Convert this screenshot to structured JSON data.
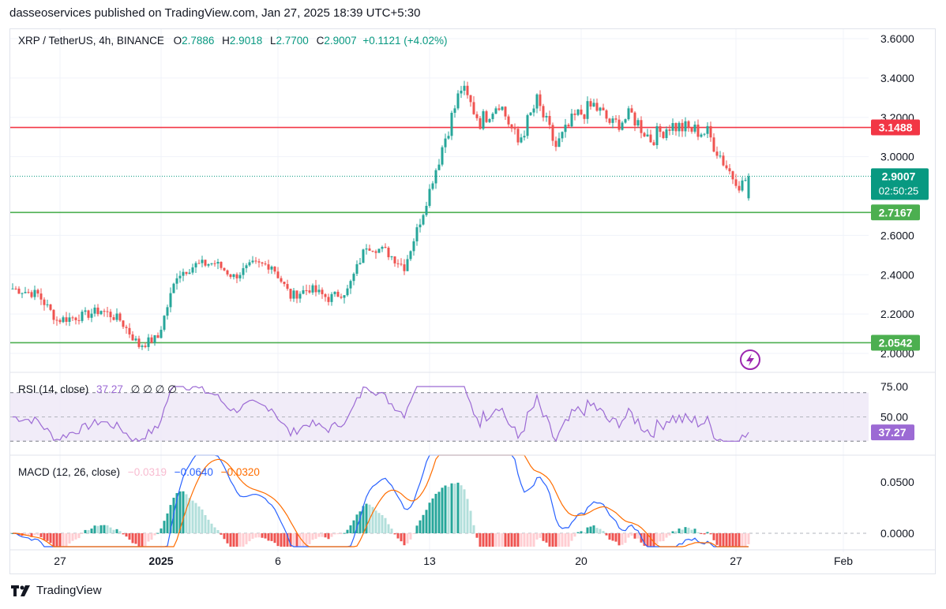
{
  "header": {
    "published_text": "dasseoservices published on TradingView.com, Jan 27, 2025 18:39 UTC+5:30"
  },
  "legend": {
    "symbol": "XRP / TetherUS, 4h, BINANCE",
    "o_label": "O",
    "o_value": "2.7886",
    "h_label": "H",
    "h_value": "2.9018",
    "l_label": "L",
    "l_value": "2.7700",
    "c_label": "C",
    "c_value": "2.9007",
    "change": "+0.1121 (+4.02%)"
  },
  "rsi_legend": {
    "label": "RSI (14, close)",
    "value": "37.27",
    "extra": "∅ ∅ ∅ ∅"
  },
  "macd_legend": {
    "label": "MACD (12, 26, close)",
    "hist": "−0.0319",
    "macd": "−0.0640",
    "signal": "−0.0320"
  },
  "footer": {
    "brand": "TradingView"
  },
  "colors": {
    "up": "#26a69a",
    "down": "#ef5350",
    "resistance": "#f23645",
    "support": "#4caf50",
    "rsi": "#9c6ad4",
    "macd": "#2962ff",
    "signal": "#ff6d00",
    "current": "#089981"
  },
  "icons": [
    "lightning-icon",
    "tradingview-logo-icon"
  ],
  "chart_data": {
    "type": "candlestick",
    "price_axis": {
      "min": 2.0,
      "max": 3.6,
      "ticks": [
        "3.6000",
        "3.4000",
        "3.2000",
        "3.0000",
        "2.6000",
        "2.4000",
        "2.2000",
        "2.0000"
      ]
    },
    "x_ticks": [
      "27",
      "2025",
      "6",
      "13",
      "20",
      "27",
      "Feb"
    ],
    "levels": [
      {
        "label": "3.1488",
        "value": 3.1488,
        "color": "#f23645"
      },
      {
        "label": "2.7167",
        "value": 2.7167,
        "color": "#4caf50"
      },
      {
        "label": "2.0542",
        "value": 2.0542,
        "color": "#4caf50"
      }
    ],
    "current_price": {
      "label": "2.9007",
      "value": 2.9007,
      "countdown": "02:50:25"
    },
    "trend": [
      [
        0,
        2.33
      ],
      [
        8,
        2.3
      ],
      [
        14,
        2.17
      ],
      [
        22,
        2.19
      ],
      [
        28,
        2.22
      ],
      [
        34,
        2.17
      ],
      [
        40,
        2.04
      ],
      [
        46,
        2.08
      ],
      [
        52,
        2.4
      ],
      [
        58,
        2.45
      ],
      [
        64,
        2.46
      ],
      [
        70,
        2.39
      ],
      [
        76,
        2.45
      ],
      [
        82,
        2.45
      ],
      [
        88,
        2.29
      ],
      [
        94,
        2.33
      ],
      [
        100,
        2.28
      ],
      [
        106,
        2.32
      ],
      [
        112,
        2.55
      ],
      [
        118,
        2.52
      ],
      [
        124,
        2.44
      ],
      [
        130,
        2.72
      ],
      [
        136,
        3.05
      ],
      [
        142,
        3.35
      ],
      [
        148,
        3.18
      ],
      [
        154,
        3.28
      ],
      [
        160,
        3.07
      ],
      [
        166,
        3.28
      ],
      [
        172,
        3.05
      ],
      [
        178,
        3.2
      ],
      [
        184,
        3.26
      ],
      [
        190,
        3.16
      ],
      [
        196,
        3.21
      ],
      [
        202,
        3.09
      ],
      [
        208,
        3.16
      ],
      [
        214,
        3.14
      ],
      [
        220,
        3.12
      ],
      [
        226,
        2.95
      ],
      [
        230,
        2.85
      ],
      [
        233,
        2.9007
      ]
    ],
    "rsi": {
      "ticks": [
        "75.00",
        "50.00"
      ],
      "current": 37.27,
      "last": 37.27
    },
    "macd": {
      "ticks": [
        "0.0500",
        "0.0000"
      ],
      "hist": -0.0319,
      "macd": -0.064,
      "signal": -0.032
    }
  }
}
